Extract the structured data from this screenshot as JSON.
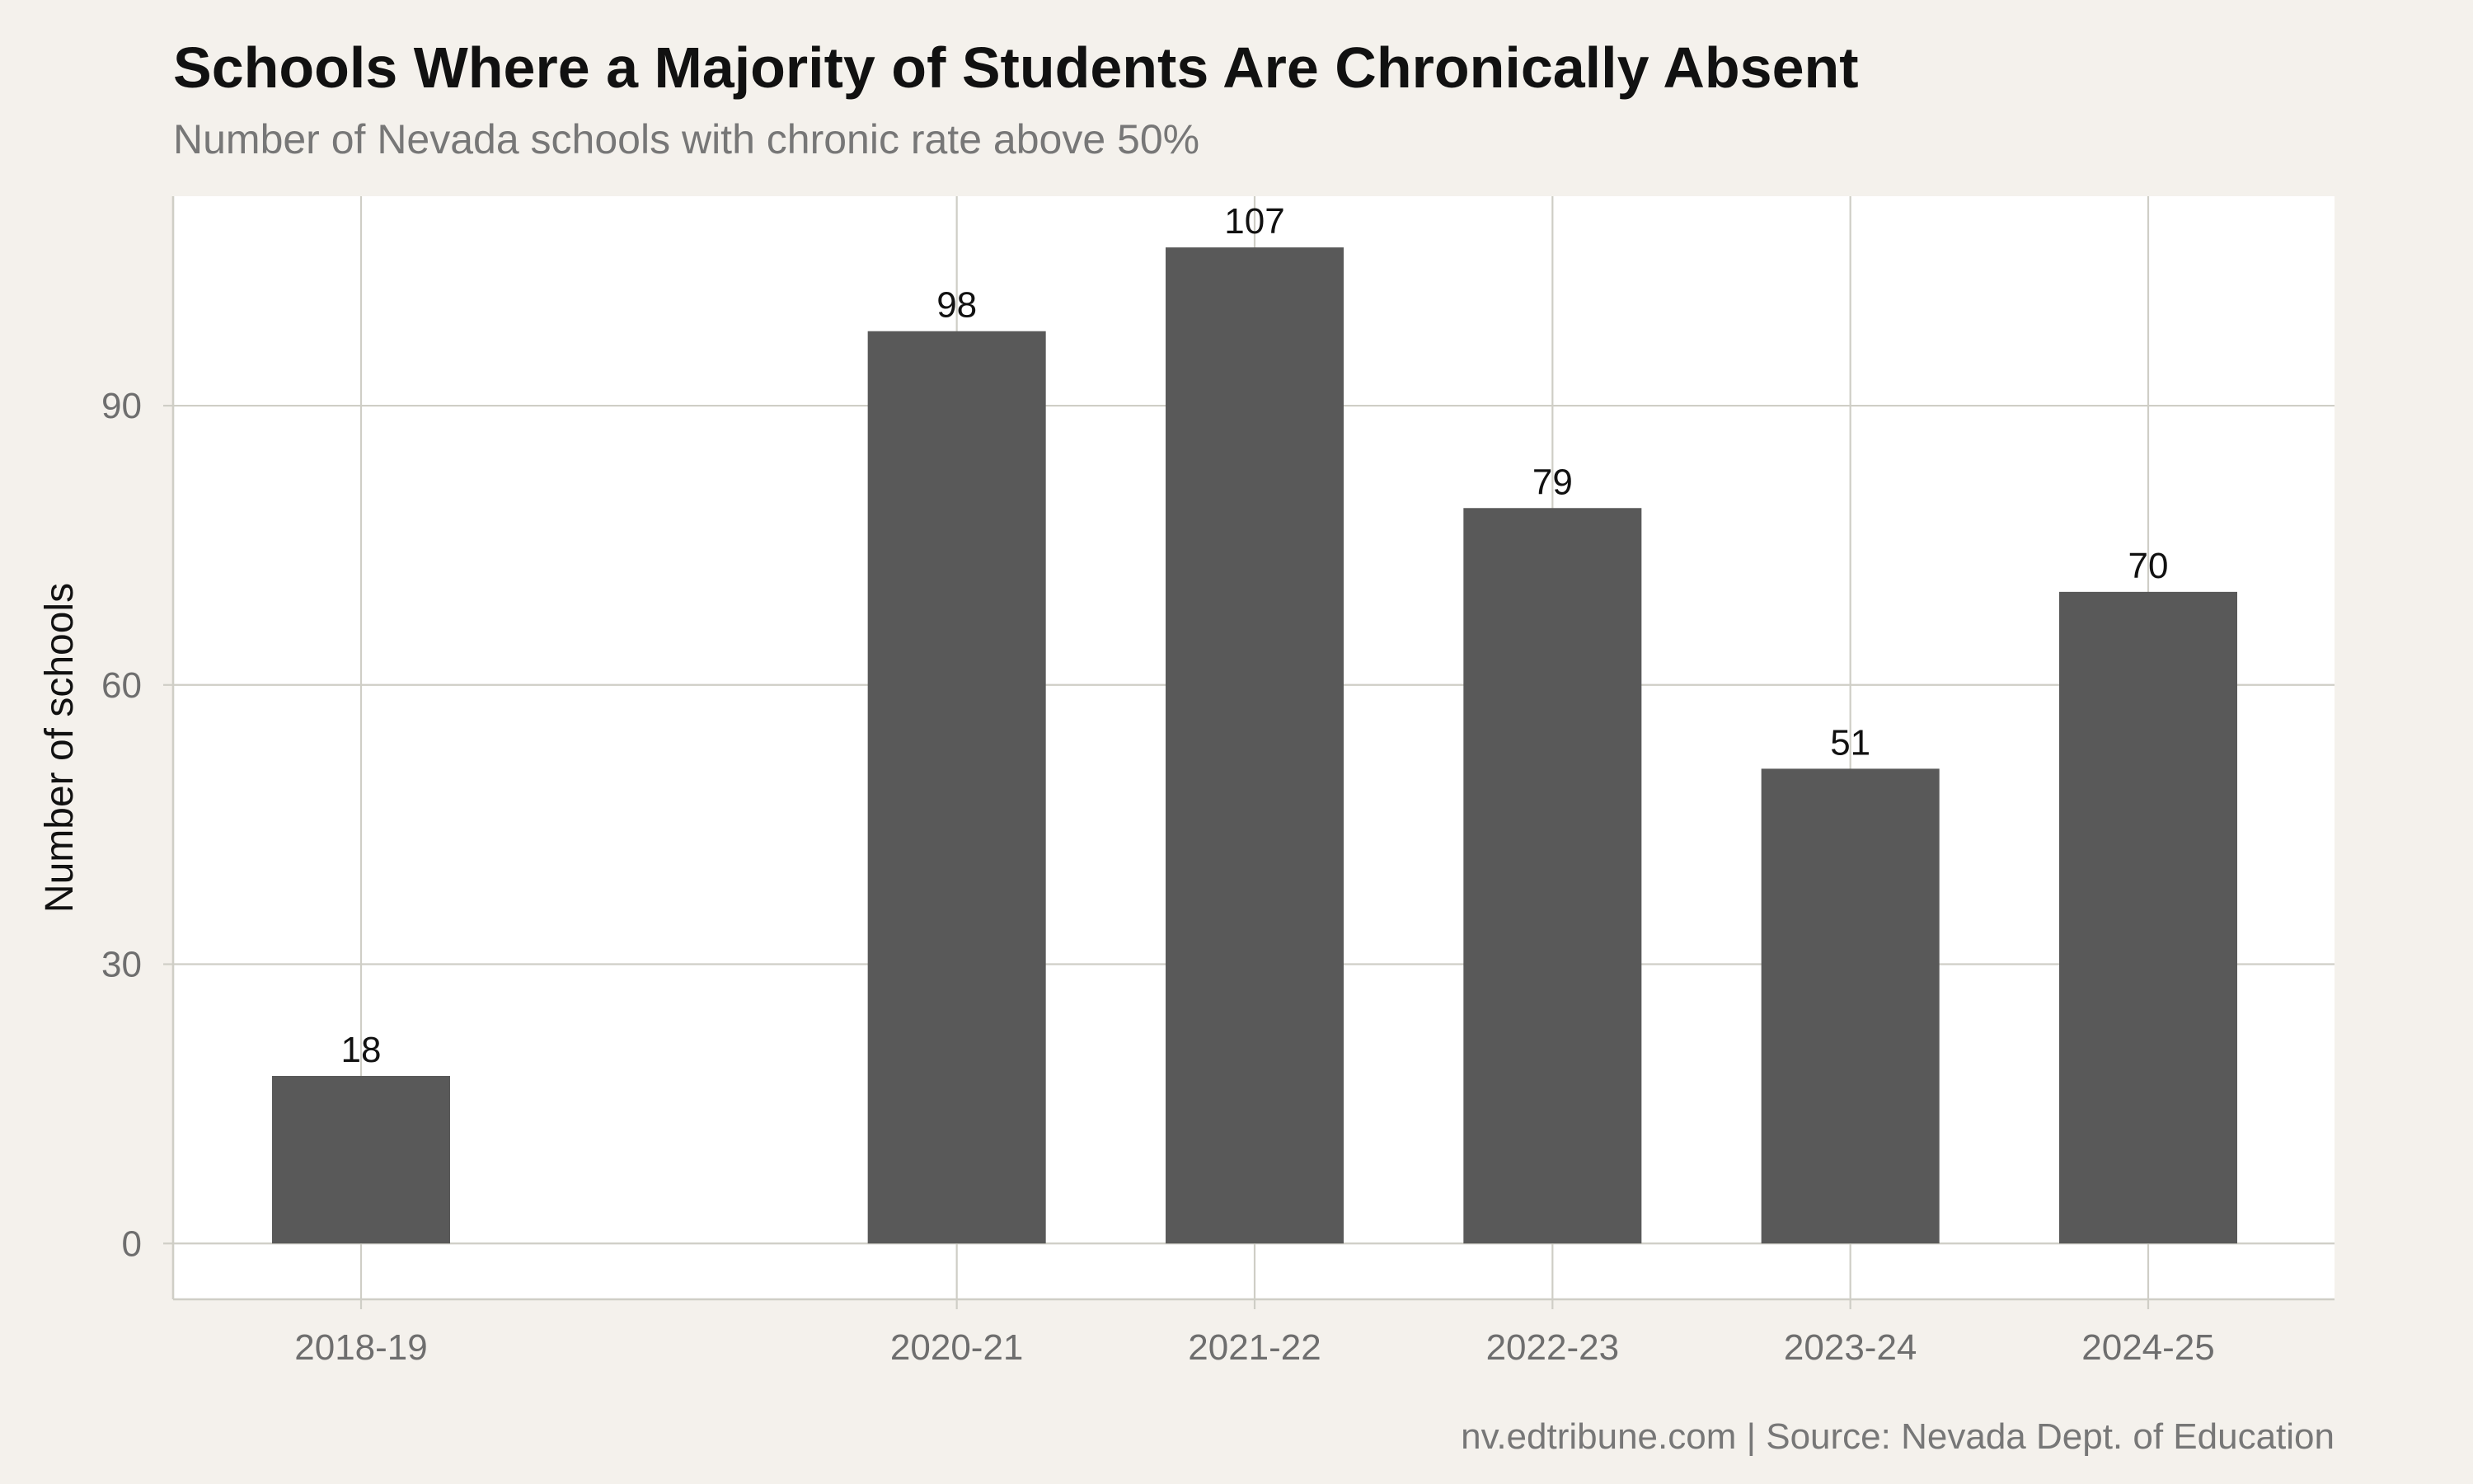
{
  "title": "Schools Where a Majority of Students Are Chronically Absent",
  "subtitle": "Number of Nevada schools with chronic rate above 50%",
  "caption": "nv.edtribune.com | Source: Nevada Dept. of Education",
  "colors": {
    "background": "#f4f1ec",
    "panel": "#ffffff",
    "grid": "#cfcec6",
    "bar": "#595959"
  },
  "chart_data": {
    "type": "bar",
    "title": "Schools Where a Majority of Students Are Chronically Absent",
    "subtitle": "Number of Nevada schools with chronic rate above 50%",
    "xlabel": "",
    "ylabel": "Number of schools",
    "x_axis": {
      "type": "school-year",
      "range_start_year": [
        2018,
        2024
      ],
      "ticks": [
        "2018-19",
        "2020-21",
        "2021-22",
        "2022-23",
        "2023-24",
        "2024-25"
      ]
    },
    "categories": [
      "2018-19",
      "2020-21",
      "2021-22",
      "2022-23",
      "2023-24",
      "2024-25"
    ],
    "values": [
      18,
      98,
      107,
      79,
      51,
      70
    ],
    "data_labels": [
      "18",
      "98",
      "107",
      "79",
      "51",
      "70"
    ],
    "ylim": [
      -6,
      112.5
    ],
    "yticks": [
      0,
      30,
      60,
      90
    ],
    "grid": true,
    "legend": "none"
  }
}
